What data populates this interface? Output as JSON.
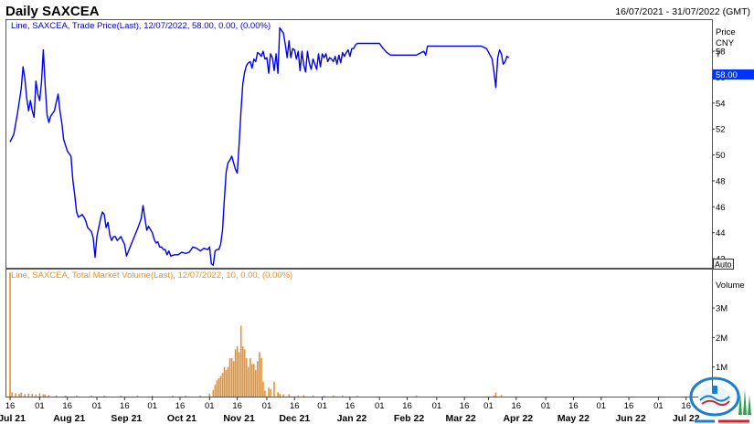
{
  "header": {
    "title": "Daily SAXCEA",
    "date_range": "16/07/2021 - 31/07/2022 (GMT)"
  },
  "price_panel": {
    "legend": "Line, SAXCEA, Trade Price(Last), 12/07/2022, 58.00, 0.00, (0.00%)",
    "axis_title_lines": [
      "Price",
      "CNY",
      "T"
    ],
    "last_value_label": "58.00",
    "auto_button": "Auto",
    "line_color": "#0000ee",
    "legend_color": "#0000cc",
    "highlight_color": "#0033ff"
  },
  "volume_panel": {
    "legend": "Line, SAXCEA, Total Market Volume(Last), 12/07/2022, 10, 0.00, (0.00%)",
    "axis_title": "Volume",
    "bar_color": "#e8902b"
  },
  "x_axis": {
    "day_ticks": [
      {
        "t": 0,
        "label": "16"
      },
      {
        "t": 16,
        "label": "01"
      },
      {
        "t": 31,
        "label": "16"
      },
      {
        "t": 47,
        "label": "01"
      },
      {
        "t": 62,
        "label": "16"
      },
      {
        "t": 77,
        "label": "01"
      },
      {
        "t": 92,
        "label": "16"
      },
      {
        "t": 108,
        "label": "01"
      },
      {
        "t": 123,
        "label": "16"
      },
      {
        "t": 139,
        "label": "01"
      },
      {
        "t": 154,
        "label": "16"
      },
      {
        "t": 169,
        "label": "01"
      },
      {
        "t": 184,
        "label": "16"
      },
      {
        "t": 200,
        "label": "01"
      },
      {
        "t": 215,
        "label": "16"
      },
      {
        "t": 231,
        "label": "01"
      },
      {
        "t": 246,
        "label": "16"
      },
      {
        "t": 259,
        "label": "01"
      },
      {
        "t": 274,
        "label": "16"
      },
      {
        "t": 290,
        "label": "01"
      },
      {
        "t": 305,
        "label": "16"
      },
      {
        "t": 320,
        "label": "01"
      },
      {
        "t": 335,
        "label": "16"
      },
      {
        "t": 351,
        "label": "01"
      },
      {
        "t": 366,
        "label": "16"
      }
    ],
    "month_labels": [
      {
        "t": 1,
        "label": "Jul 21"
      },
      {
        "t": 32,
        "label": "Aug 21"
      },
      {
        "t": 63,
        "label": "Sep 21"
      },
      {
        "t": 93,
        "label": "Oct 21"
      },
      {
        "t": 124,
        "label": "Nov 21"
      },
      {
        "t": 154,
        "label": "Dec 21"
      },
      {
        "t": 185,
        "label": "Jan 22"
      },
      {
        "t": 216,
        "label": "Feb 22"
      },
      {
        "t": 244,
        "label": "Mar 22"
      },
      {
        "t": 275,
        "label": "Apr 22"
      },
      {
        "t": 305,
        "label": "May 22"
      },
      {
        "t": 336,
        "label": "Jun 22"
      },
      {
        "t": 366,
        "label": "Jul 22"
      }
    ]
  },
  "chart_data": [
    {
      "type": "line",
      "series": [
        {
          "name": "SAXCEA",
          "label": "Trade Price(Last)"
        }
      ],
      "x_unit": "days since 16/07/2021",
      "xlim": [
        -2,
        380
      ],
      "ylim": [
        41.3,
        60.4
      ],
      "yticks": [
        42,
        44,
        46,
        48,
        50,
        52,
        54,
        56,
        58
      ],
      "grid": false,
      "points": [
        [
          0,
          51.0
        ],
        [
          2,
          51.6
        ],
        [
          4,
          53.2
        ],
        [
          6,
          55.1
        ],
        [
          7,
          56.8
        ],
        [
          8,
          55.9
        ],
        [
          9,
          54.4
        ],
        [
          10,
          53.4
        ],
        [
          11,
          54.2
        ],
        [
          12,
          53.4
        ],
        [
          13,
          52.9
        ],
        [
          14,
          55.7
        ],
        [
          15,
          54.7
        ],
        [
          16,
          54.2
        ],
        [
          17,
          55.6
        ],
        [
          18,
          58.1
        ],
        [
          19,
          55.4
        ],
        [
          20,
          53.1
        ],
        [
          21,
          52.5
        ],
        [
          22,
          53.0
        ],
        [
          24,
          53.4
        ],
        [
          26,
          54.7
        ],
        [
          27,
          53.4
        ],
        [
          28,
          52.5
        ],
        [
          29,
          51.2
        ],
        [
          31,
          50.3
        ],
        [
          33,
          49.9
        ],
        [
          34,
          48.0
        ],
        [
          35,
          46.9
        ],
        [
          36,
          45.6
        ],
        [
          37,
          45.2
        ],
        [
          39,
          45.4
        ],
        [
          40,
          45.2
        ],
        [
          41,
          44.9
        ],
        [
          42,
          44.4
        ],
        [
          44,
          44.1
        ],
        [
          45,
          43.6
        ],
        [
          46,
          42.1
        ],
        [
          47,
          43.7
        ],
        [
          49,
          45.1
        ],
        [
          50,
          45.6
        ],
        [
          51,
          45.4
        ],
        [
          52,
          44.4
        ],
        [
          53,
          44.8
        ],
        [
          54,
          43.8
        ],
        [
          55,
          43.4
        ],
        [
          56,
          43.7
        ],
        [
          57,
          43.7
        ],
        [
          58,
          43.4
        ],
        [
          60,
          43.7
        ],
        [
          62,
          43.1
        ],
        [
          63,
          42.2
        ],
        [
          65,
          42.9
        ],
        [
          67,
          43.6
        ],
        [
          69,
          44.3
        ],
        [
          70,
          44.7
        ],
        [
          71,
          45.1
        ],
        [
          72,
          46.1
        ],
        [
          73,
          45.1
        ],
        [
          74,
          44.2
        ],
        [
          75,
          44.5
        ],
        [
          77,
          44.0
        ],
        [
          78,
          43.5
        ],
        [
          79,
          43.2
        ],
        [
          80,
          43.3
        ],
        [
          81,
          42.9
        ],
        [
          82,
          42.9
        ],
        [
          83,
          42.7
        ],
        [
          84,
          42.7
        ],
        [
          85,
          42.3
        ],
        [
          86,
          42.6
        ],
        [
          87,
          42.2
        ],
        [
          89,
          42.3
        ],
        [
          91,
          42.3
        ],
        [
          93,
          42.5
        ],
        [
          95,
          42.4
        ],
        [
          97,
          42.5
        ],
        [
          99,
          42.9
        ],
        [
          101,
          42.8
        ],
        [
          103,
          42.6
        ],
        [
          105,
          42.8
        ],
        [
          107,
          42.7
        ],
        [
          108,
          42.9
        ],
        [
          109,
          41.6
        ],
        [
          110,
          41.5
        ],
        [
          111,
          42.6
        ],
        [
          112,
          42.7
        ],
        [
          113,
          42.7
        ],
        [
          114,
          43.1
        ],
        [
          115,
          44.2
        ],
        [
          116,
          46.6
        ],
        [
          117,
          48.7
        ],
        [
          118,
          49.4
        ],
        [
          119,
          49.6
        ],
        [
          120,
          49.9
        ],
        [
          121,
          49.4
        ],
        [
          122,
          48.9
        ],
        [
          123,
          48.6
        ],
        [
          124,
          50.8
        ],
        [
          125,
          53.4
        ],
        [
          126,
          55.5
        ],
        [
          127,
          56.4
        ],
        [
          128,
          56.9
        ],
        [
          129,
          57.1
        ],
        [
          130,
          57.2
        ],
        [
          131,
          56.7
        ],
        [
          132,
          57.4
        ],
        [
          133,
          57.2
        ],
        [
          134,
          57.9
        ],
        [
          135,
          57.8
        ],
        [
          136,
          57.6
        ],
        [
          137,
          58.0
        ],
        [
          138,
          57.4
        ],
        [
          139,
          57.5
        ],
        [
          140,
          56.3
        ],
        [
          141,
          57.8
        ],
        [
          142,
          57.5
        ],
        [
          143,
          56.5
        ],
        [
          144,
          57.8
        ],
        [
          145,
          56.3
        ],
        [
          146,
          59.8
        ],
        [
          148,
          59.4
        ],
        [
          149,
          58.5
        ],
        [
          150,
          57.5
        ],
        [
          151,
          58.8
        ],
        [
          152,
          57.5
        ],
        [
          153,
          58.2
        ],
        [
          154,
          58.1
        ],
        [
          155,
          57.4
        ],
        [
          156,
          58.0
        ],
        [
          157,
          56.5
        ],
        [
          158,
          58.0
        ],
        [
          159,
          56.9
        ],
        [
          160,
          56.4
        ],
        [
          161,
          58.0
        ],
        [
          162,
          57.1
        ],
        [
          163,
          56.6
        ],
        [
          164,
          57.4
        ],
        [
          165,
          57.0
        ],
        [
          166,
          56.6
        ],
        [
          167,
          57.8
        ],
        [
          168,
          56.8
        ],
        [
          169,
          57.8
        ],
        [
          170,
          57.5
        ],
        [
          171,
          57.8
        ],
        [
          172,
          57.2
        ],
        [
          173,
          57.5
        ],
        [
          174,
          57.4
        ],
        [
          175,
          57.2
        ],
        [
          176,
          57.6
        ],
        [
          177,
          57.0
        ],
        [
          178,
          57.7
        ],
        [
          179,
          57.1
        ],
        [
          180,
          57.9
        ],
        [
          181,
          57.6
        ],
        [
          182,
          57.9
        ],
        [
          183,
          58.1
        ],
        [
          184,
          57.6
        ],
        [
          185,
          58.2
        ],
        [
          186,
          58.2
        ],
        [
          187,
          58.5
        ],
        [
          188,
          58.6
        ],
        [
          200,
          58.6
        ],
        [
          202,
          58.2
        ],
        [
          204,
          57.9
        ],
        [
          206,
          57.7
        ],
        [
          210,
          57.7
        ],
        [
          220,
          57.7
        ],
        [
          224,
          58.0
        ],
        [
          225,
          57.7
        ],
        [
          226,
          58.4
        ],
        [
          244,
          58.4
        ],
        [
          255,
          58.4
        ],
        [
          258,
          58.2
        ],
        [
          261,
          57.4
        ],
        [
          262,
          56.4
        ],
        [
          263,
          55.2
        ],
        [
          264,
          57.5
        ],
        [
          265,
          58.1
        ],
        [
          266,
          57.8
        ],
        [
          267,
          57.0
        ],
        [
          268,
          57.2
        ],
        [
          269,
          57.6
        ],
        [
          270,
          57.5
        ]
      ]
    },
    {
      "type": "bar",
      "series": [
        {
          "name": "SAXCEA",
          "label": "Total Market Volume(Last)"
        }
      ],
      "x_unit": "days since 16/07/2021",
      "ylim": [
        0,
        4300000
      ],
      "yticks": [
        {
          "v": 1000000,
          "label": "1M"
        },
        {
          "v": 2000000,
          "label": "2M"
        },
        {
          "v": 3000000,
          "label": "3M"
        }
      ],
      "grid": false,
      "bars": [
        [
          0,
          4200000
        ],
        [
          1,
          150000
        ],
        [
          3,
          110000
        ],
        [
          5,
          90000
        ],
        [
          6,
          130000
        ],
        [
          8,
          80000
        ],
        [
          10,
          100000
        ],
        [
          12,
          90000
        ],
        [
          14,
          70000
        ],
        [
          16,
          110000
        ],
        [
          18,
          80000
        ],
        [
          19,
          70000
        ],
        [
          21,
          60000
        ],
        [
          25,
          40000
        ],
        [
          30,
          30000
        ],
        [
          36,
          25000
        ],
        [
          44,
          25000
        ],
        [
          51,
          30000
        ],
        [
          60,
          20000
        ],
        [
          69,
          25000
        ],
        [
          77,
          20000
        ],
        [
          88,
          30000
        ],
        [
          95,
          20000
        ],
        [
          103,
          30000
        ],
        [
          108,
          100000
        ],
        [
          110,
          220000
        ],
        [
          111,
          400000
        ],
        [
          112,
          550000
        ],
        [
          113,
          620000
        ],
        [
          114,
          700000
        ],
        [
          115,
          800000
        ],
        [
          116,
          1000000
        ],
        [
          117,
          900000
        ],
        [
          118,
          1000000
        ],
        [
          119,
          1300000
        ],
        [
          120,
          1300000
        ],
        [
          121,
          1200000
        ],
        [
          122,
          1600000
        ],
        [
          123,
          1700000
        ],
        [
          124,
          1500000
        ],
        [
          125,
          2400000
        ],
        [
          126,
          1700000
        ],
        [
          127,
          1600000
        ],
        [
          128,
          1300000
        ],
        [
          129,
          1000000
        ],
        [
          130,
          1300000
        ],
        [
          131,
          1100000
        ],
        [
          132,
          1100000
        ],
        [
          133,
          900000
        ],
        [
          134,
          1200000
        ],
        [
          135,
          1500000
        ],
        [
          136,
          1300000
        ],
        [
          137,
          500000
        ],
        [
          138,
          200000
        ],
        [
          140,
          300000
        ],
        [
          141,
          250000
        ],
        [
          143,
          500000
        ],
        [
          145,
          150000
        ],
        [
          146,
          100000
        ],
        [
          148,
          70000
        ],
        [
          151,
          80000
        ],
        [
          156,
          40000
        ],
        [
          159,
          50000
        ],
        [
          164,
          40000
        ],
        [
          170,
          30000
        ],
        [
          175,
          40000
        ],
        [
          180,
          30000
        ],
        [
          188,
          20000
        ],
        [
          220,
          20000
        ],
        [
          262,
          40000
        ],
        [
          263,
          140000
        ],
        [
          266,
          60000
        ]
      ]
    }
  ]
}
